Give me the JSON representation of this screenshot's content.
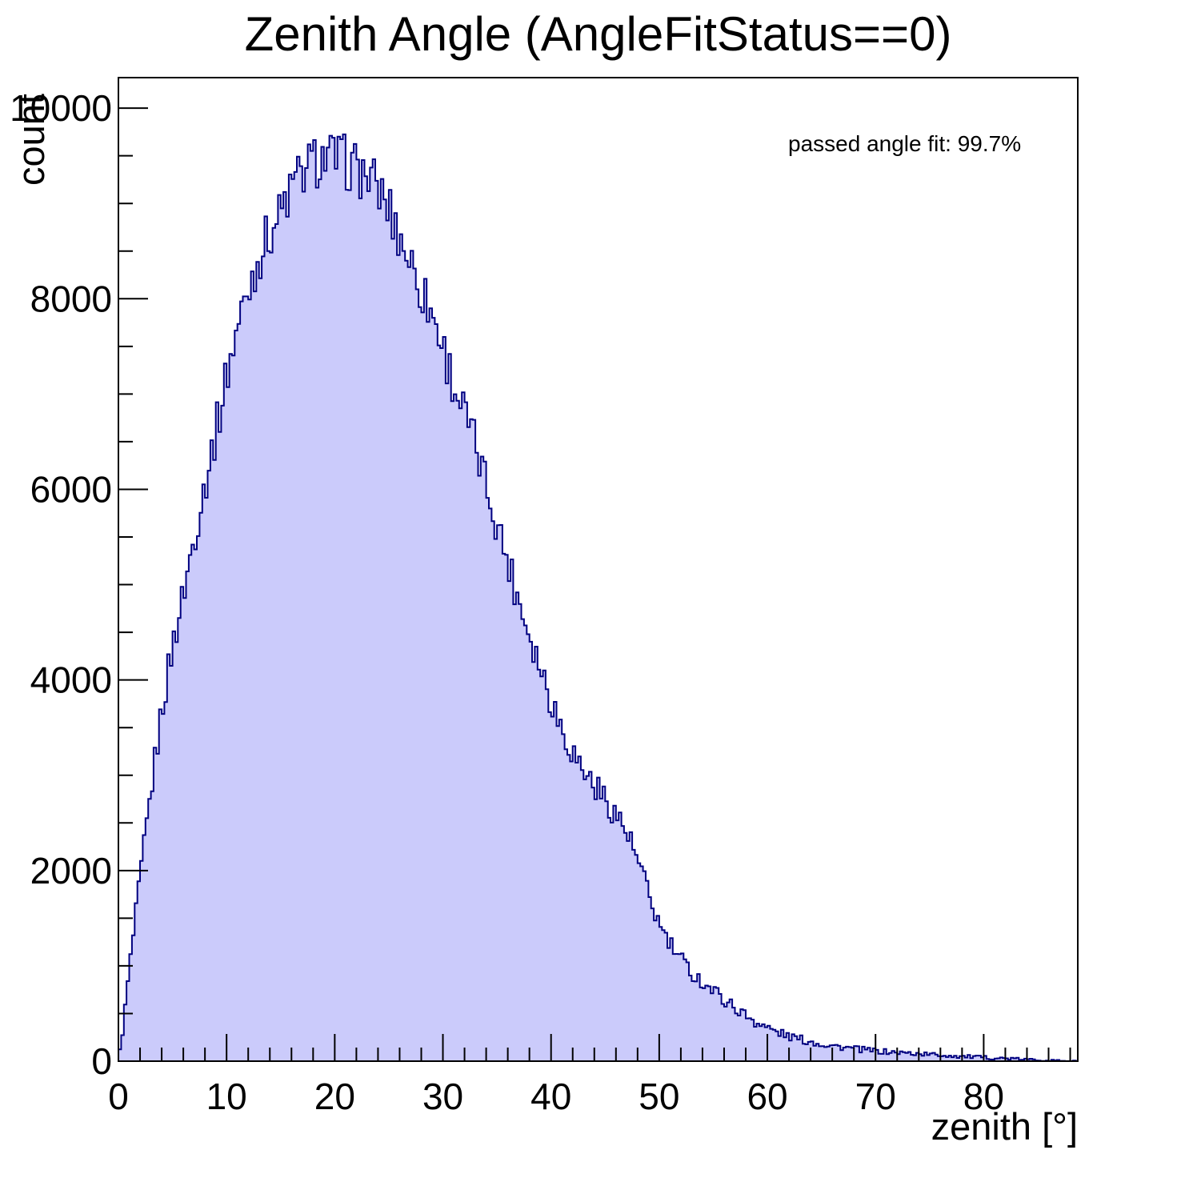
{
  "chart": {
    "title": "Zenith Angle (AngleFitStatus==0)",
    "annotation": "passed angle fit: 99.7%",
    "x_axis": {
      "label": "zenith [°]",
      "min": 0,
      "max": 88.7,
      "major_ticks": [
        0,
        10,
        20,
        30,
        40,
        50,
        60,
        70,
        80
      ],
      "major_tick_labels": [
        "0",
        "10",
        "20",
        "30",
        "40",
        "50",
        "60",
        "70",
        "80"
      ],
      "minor_tick_step": 2
    },
    "y_axis": {
      "label": "count",
      "min": 0,
      "max": 10320,
      "major_ticks": [
        0,
        2000,
        4000,
        6000,
        8000,
        10000
      ],
      "major_tick_labels": [
        "0",
        "2000",
        "4000",
        "6000",
        "8000",
        "10000"
      ],
      "minor_tick_step": 500
    },
    "colors": {
      "fill": "#cbcbfb",
      "line": "#000080",
      "axis": "#000000",
      "text": "#000000"
    }
  },
  "chart_data": {
    "type": "bar",
    "title": "Zenith Angle (AngleFitStatus==0)",
    "xlabel": "zenith [°]",
    "ylabel": "count",
    "xlim": [
      0,
      88.7
    ],
    "ylim": [
      0,
      10320
    ],
    "bin_width_deg": 0.25,
    "noise_sigma": 3.0,
    "annotation": "passed angle fit: 99.7%",
    "envelope": {
      "x": [
        0,
        0.5,
        1,
        2,
        3,
        4,
        5,
        6,
        7,
        8,
        9,
        10,
        11,
        12,
        13,
        14,
        15,
        16,
        17,
        18,
        19,
        20,
        21,
        22,
        23,
        24,
        25,
        26,
        27,
        28,
        29,
        30,
        31,
        32,
        33,
        34,
        35,
        36,
        37,
        38,
        39,
        40,
        41,
        42,
        43,
        44,
        45,
        46,
        47,
        48,
        49,
        50,
        51,
        52,
        53,
        54,
        55,
        56,
        57,
        58,
        59,
        60,
        61,
        62,
        63,
        64,
        65,
        66,
        67,
        68,
        69,
        70,
        71,
        72,
        73,
        74,
        75,
        76,
        77,
        78,
        79,
        80,
        81,
        82,
        83,
        84,
        85,
        86,
        87,
        88,
        88.7
      ],
      "counts": [
        0,
        420,
        950,
        1900,
        2820,
        3680,
        4350,
        4900,
        5500,
        6060,
        6600,
        7200,
        7700,
        8100,
        8450,
        8700,
        8900,
        9150,
        9320,
        9430,
        9480,
        9470,
        9430,
        9360,
        9280,
        9150,
        8950,
        8650,
        8400,
        8100,
        7850,
        7500,
        7100,
        6800,
        6450,
        6050,
        5650,
        5250,
        4850,
        4500,
        4150,
        3800,
        3500,
        3250,
        3050,
        2900,
        2750,
        2600,
        2400,
        2100,
        1750,
        1430,
        1220,
        1060,
        930,
        830,
        740,
        650,
        560,
        480,
        410,
        350,
        300,
        262,
        230,
        205,
        182,
        163,
        146,
        131,
        118,
        107,
        98,
        90,
        84,
        78,
        71,
        64,
        57,
        50,
        44,
        38,
        33,
        28,
        23,
        18,
        13,
        9,
        6,
        3,
        1
      ]
    }
  }
}
